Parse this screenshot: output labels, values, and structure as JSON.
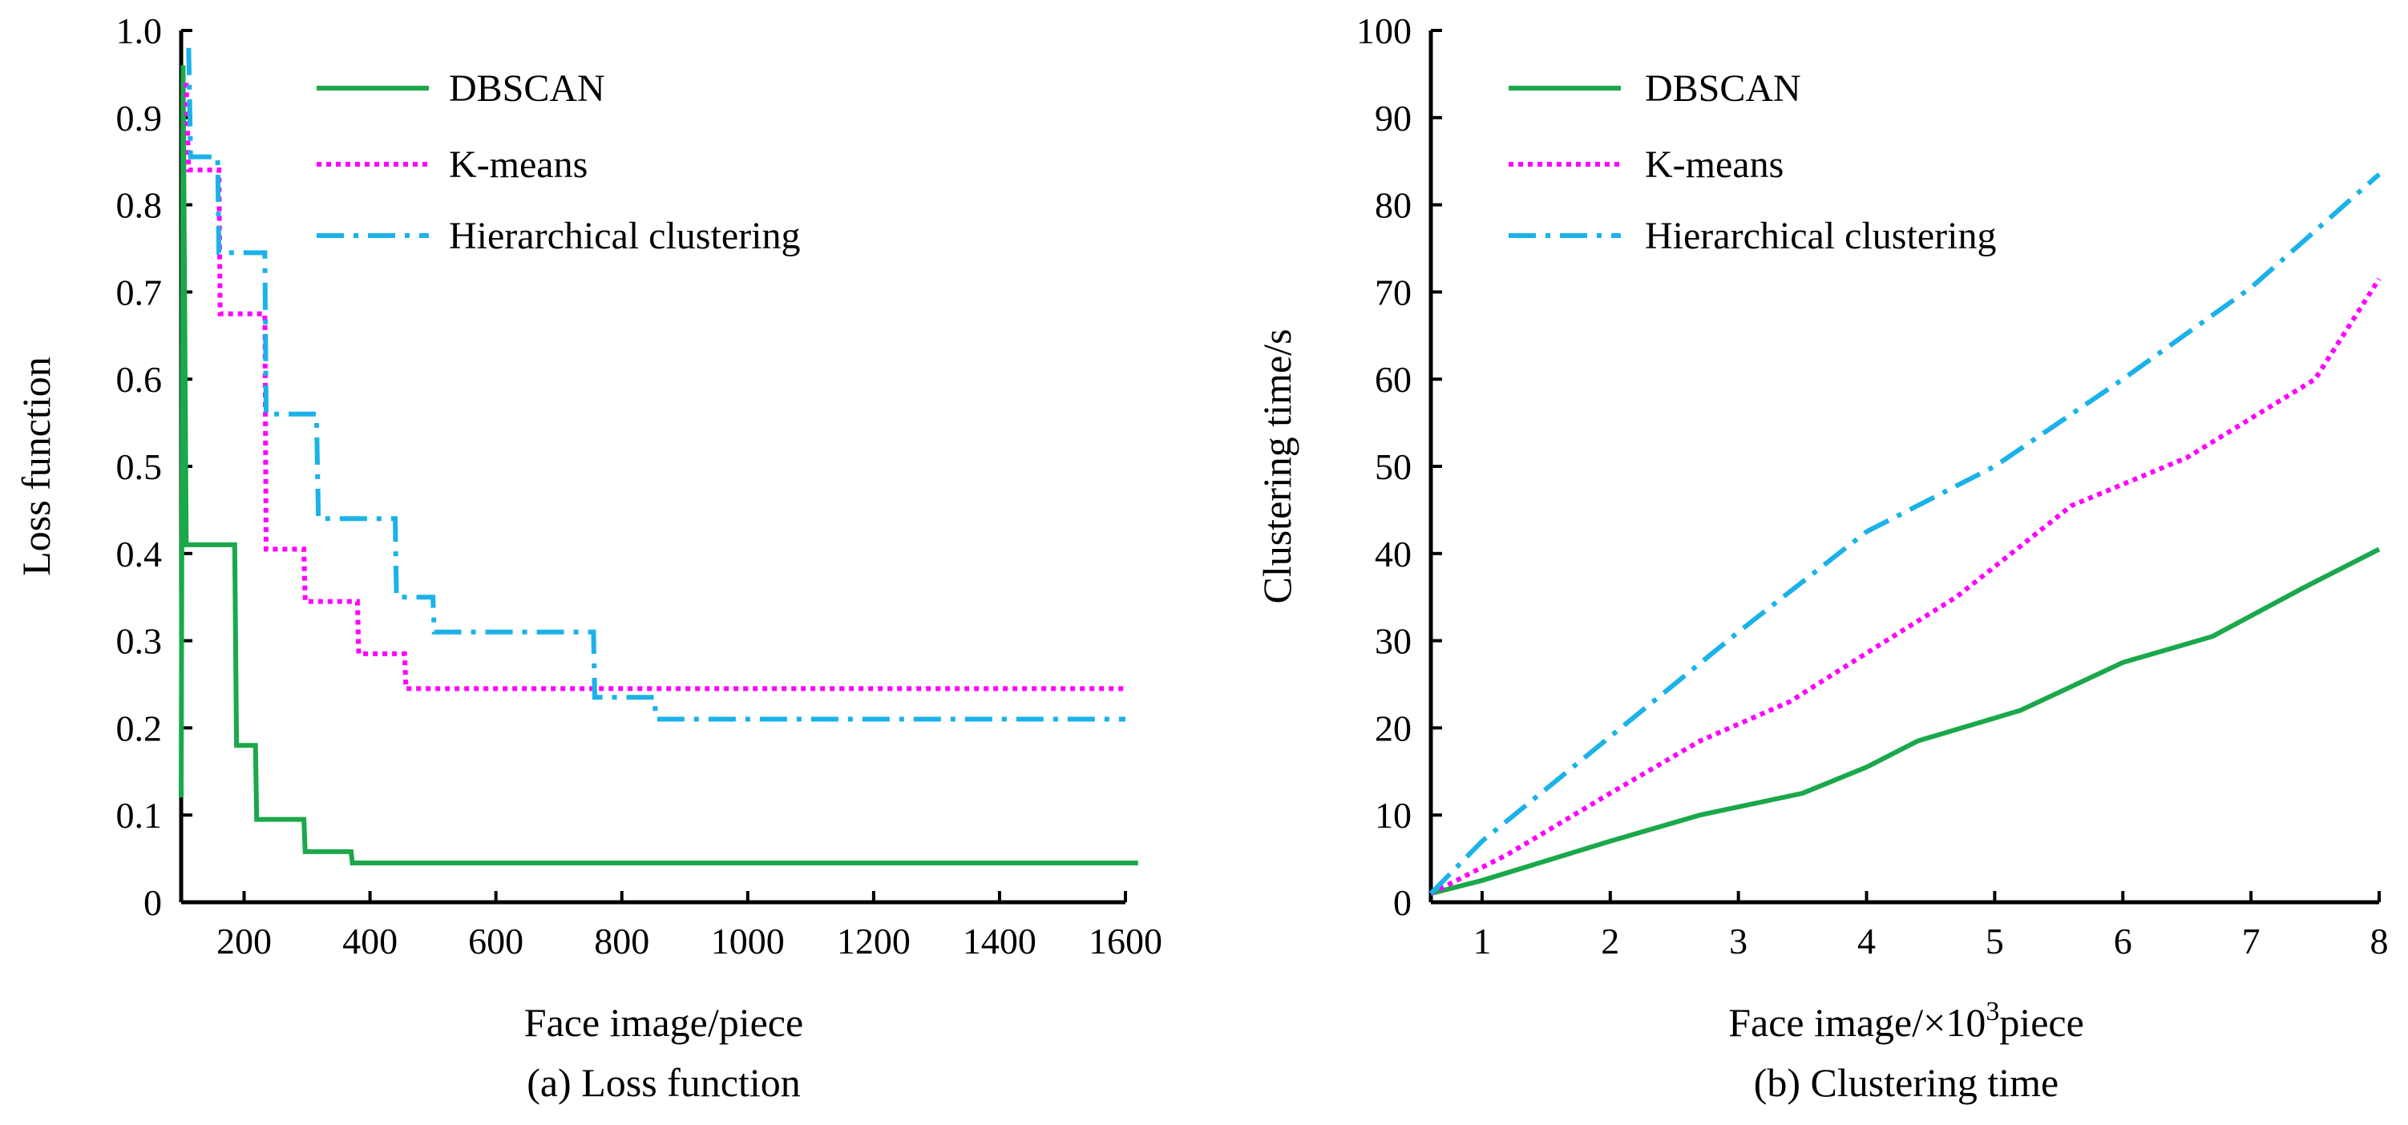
{
  "chart_data": [
    {
      "id": "a",
      "type": "line",
      "step": true,
      "title": "(a) Loss function",
      "xlabel": "Face image/piece",
      "ylabel": "Loss function",
      "xlim": [
        100,
        1600
      ],
      "ylim": [
        0,
        1.0
      ],
      "xticks": [
        200,
        400,
        600,
        800,
        1000,
        1200,
        1400,
        1600
      ],
      "xtick_labels": [
        "200",
        "400",
        "600",
        "800",
        "1000",
        "1200",
        "1400",
        "1600"
      ],
      "yticks": [
        0,
        0.1,
        0.2,
        0.3,
        0.4,
        0.5,
        0.6,
        0.7,
        0.8,
        0.9,
        1.0
      ],
      "ytick_labels": [
        "0",
        "0.1",
        "0.2",
        "0.3",
        "0.4",
        "0.5",
        "0.6",
        "0.7",
        "0.8",
        "0.9",
        "1.0"
      ],
      "legend": "top-right",
      "series": [
        {
          "name": "DBSCAN",
          "color": "#1aa84a",
          "dash": "solid",
          "points": [
            [
              100,
              0.12
            ],
            [
              103,
              0.96
            ],
            [
              108,
              0.41
            ],
            [
              185,
              0.41
            ],
            [
              188,
              0.18
            ],
            [
              218,
              0.18
            ],
            [
              220,
              0.095
            ],
            [
              295,
              0.095
            ],
            [
              297,
              0.058
            ],
            [
              370,
              0.058
            ],
            [
              372,
              0.045
            ],
            [
              1620,
              0.045
            ]
          ]
        },
        {
          "name": "K-means",
          "color": "#ff00ff",
          "dash": "dotted",
          "points": [
            [
              108,
              0.94
            ],
            [
              112,
              0.84
            ],
            [
              160,
              0.84
            ],
            [
              162,
              0.675
            ],
            [
              233,
              0.675
            ],
            [
              235,
              0.405
            ],
            [
              295,
              0.405
            ],
            [
              297,
              0.345
            ],
            [
              380,
              0.345
            ],
            [
              382,
              0.285
            ],
            [
              455,
              0.285
            ],
            [
              457,
              0.245
            ],
            [
              1600,
              0.245
            ]
          ]
        },
        {
          "name": "Hierarchical clustering",
          "color": "#1ab2e8",
          "dash": "dashdot",
          "points": [
            [
              112,
              0.98
            ],
            [
              115,
              0.855
            ],
            [
              158,
              0.855
            ],
            [
              160,
              0.745
            ],
            [
              233,
              0.745
            ],
            [
              235,
              0.56
            ],
            [
              315,
              0.56
            ],
            [
              318,
              0.44
            ],
            [
              440,
              0.44
            ],
            [
              442,
              0.35
            ],
            [
              500,
              0.35
            ],
            [
              502,
              0.31
            ],
            [
              755,
              0.31
            ],
            [
              757,
              0.235
            ],
            [
              852,
              0.235
            ],
            [
              854,
              0.21
            ],
            [
              1600,
              0.21
            ]
          ]
        }
      ]
    },
    {
      "id": "b",
      "type": "line",
      "title": "(b) Clustering time",
      "xlabel_main": "Face image/×10",
      "xlabel_sup": "3",
      "xlabel_tail": "piece",
      "ylabel": "Clustering time/s",
      "xlim": [
        0.6,
        8
      ],
      "ylim": [
        0,
        100
      ],
      "xticks": [
        1,
        2,
        3,
        4,
        5,
        6,
        7,
        8
      ],
      "xtick_labels": [
        "1",
        "2",
        "3",
        "4",
        "5",
        "6",
        "7",
        "8"
      ],
      "yticks": [
        0,
        10,
        20,
        30,
        40,
        50,
        60,
        70,
        80,
        90,
        100
      ],
      "ytick_labels": [
        "0",
        "10",
        "20",
        "30",
        "40",
        "50",
        "60",
        "70",
        "80",
        "90",
        "100"
      ],
      "legend": "top-left",
      "series": [
        {
          "name": "DBSCAN",
          "color": "#1aa84a",
          "dash": "solid",
          "points": [
            [
              0.6,
              1
            ],
            [
              1,
              2.5
            ],
            [
              2,
              7
            ],
            [
              2.7,
              10
            ],
            [
              3.5,
              12.5
            ],
            [
              4,
              15.5
            ],
            [
              4.4,
              18.5
            ],
            [
              5.2,
              22
            ],
            [
              6,
              27.5
            ],
            [
              6.7,
              30.5
            ],
            [
              7.4,
              36
            ],
            [
              8,
              40.5
            ]
          ]
        },
        {
          "name": "K-means",
          "color": "#ff00ff",
          "dash": "dotted",
          "points": [
            [
              0.6,
              1
            ],
            [
              1.2,
              5.5
            ],
            [
              2,
              12.5
            ],
            [
              2.7,
              18.5
            ],
            [
              3.4,
              23
            ],
            [
              4.1,
              29.5
            ],
            [
              4.7,
              35
            ],
            [
              5.6,
              45.5
            ],
            [
              6.5,
              51
            ],
            [
              7.5,
              60
            ],
            [
              8,
              71.5
            ]
          ]
        },
        {
          "name": "Hierarchical clustering",
          "color": "#1ab2e8",
          "dash": "dashdot",
          "points": [
            [
              0.6,
              1
            ],
            [
              1,
              7
            ],
            [
              2,
              19
            ],
            [
              3,
              31
            ],
            [
              4,
              42.5
            ],
            [
              5,
              50
            ],
            [
              6,
              60
            ],
            [
              7,
              70.5
            ],
            [
              8,
              83.5
            ]
          ]
        }
      ]
    }
  ]
}
